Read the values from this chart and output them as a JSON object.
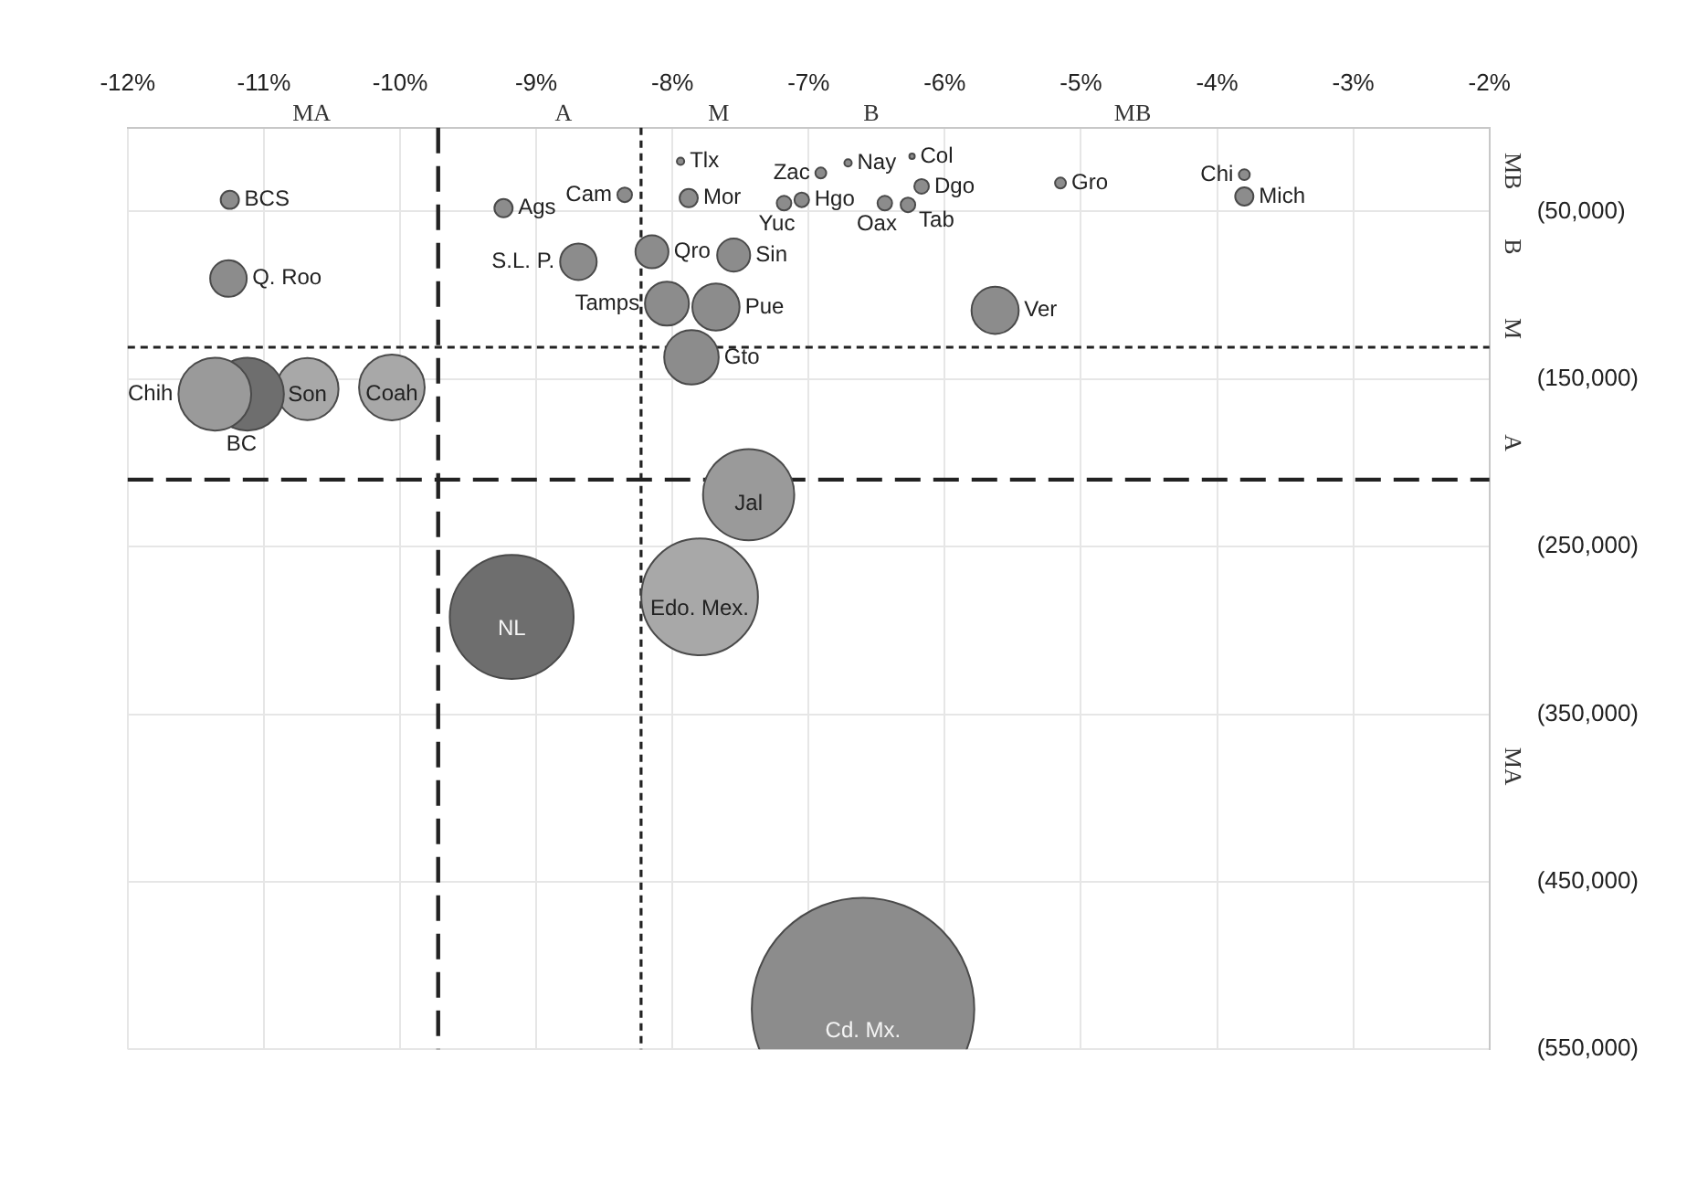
{
  "chart_data": {
    "type": "bubble",
    "xlim": [
      -12,
      -2
    ],
    "xticks": [
      {
        "value": -12,
        "label": "-12%"
      },
      {
        "value": -11,
        "label": "-11%"
      },
      {
        "value": -10,
        "label": "-10%"
      },
      {
        "value": -9,
        "label": "-9%"
      },
      {
        "value": -8,
        "label": "-8%"
      },
      {
        "value": -7,
        "label": "-7%"
      },
      {
        "value": -6,
        "label": "-6%"
      },
      {
        "value": -5,
        "label": "-5%"
      },
      {
        "value": -4,
        "label": "-4%"
      },
      {
        "value": -3,
        "label": "-3%"
      },
      {
        "value": -2,
        "label": "-2%"
      }
    ],
    "ylim": [
      -550000,
      0
    ],
    "yticks": [
      {
        "value": -50000,
        "label": "(50,000)"
      },
      {
        "value": -150000,
        "label": "(150,000)"
      },
      {
        "value": -250000,
        "label": "(250,000)"
      },
      {
        "value": -350000,
        "label": "(350,000)"
      },
      {
        "value": -450000,
        "label": "(450,000)"
      },
      {
        "value": -550000,
        "label": "(550,000)"
      }
    ],
    "grid": true,
    "legend": false,
    "ref_lines": [
      {
        "axis": "x",
        "value": -9.72,
        "line_style": "dashed",
        "color": "#222222"
      },
      {
        "axis": "x",
        "value": -8.23,
        "line_style": "dotted",
        "color": "#222222"
      },
      {
        "axis": "y",
        "value": -131000,
        "line_style": "dotted",
        "color": "#222222"
      },
      {
        "axis": "y",
        "value": -210000,
        "line_style": "dashed",
        "color": "#222222"
      }
    ],
    "annotations": [
      "MA",
      "A",
      "M",
      "B",
      "MB",
      "MB",
      "B",
      "M",
      "A",
      "MA"
    ],
    "series": [
      {
        "name": "BCS",
        "color": "#8c8c8c",
        "x": [
          -11.25
        ],
        "values": [
          -43000
        ],
        "sizes": [
          0.0067
        ]
      },
      {
        "name": "Q. Roo",
        "color": "#8c8c8c",
        "x": [
          -11.26
        ],
        "values": [
          -90000
        ],
        "sizes": [
          0.027
        ]
      },
      {
        "name": "Ags",
        "color": "#8c8c8c",
        "x": [
          -9.24
        ],
        "values": [
          -48000
        ],
        "sizes": [
          0.0067
        ]
      },
      {
        "name": "Cam",
        "color": "#8c8c8c",
        "x": [
          -8.35
        ],
        "values": [
          -40000
        ],
        "sizes": [
          0.0043
        ]
      },
      {
        "name": "S.L. P.",
        "color": "#8c8c8c",
        "x": [
          -8.69
        ],
        "values": [
          -80000
        ],
        "sizes": [
          0.027
        ]
      },
      {
        "name": "Tlx",
        "color": "#8c8c8c",
        "x": [
          -7.94
        ],
        "values": [
          -20000
        ],
        "sizes": [
          0.0011
        ]
      },
      {
        "name": "Mor",
        "color": "#8c8c8c",
        "x": [
          -7.88
        ],
        "values": [
          -42000
        ],
        "sizes": [
          0.0067
        ]
      },
      {
        "name": "Qro",
        "color": "#8c8c8c",
        "x": [
          -8.15
        ],
        "values": [
          -74000
        ],
        "sizes": [
          0.022
        ]
      },
      {
        "name": "Sin",
        "color": "#8c8c8c",
        "x": [
          -7.55
        ],
        "values": [
          -76000
        ],
        "sizes": [
          0.022
        ]
      },
      {
        "name": "Tamps",
        "color": "#8c8c8c",
        "x": [
          -8.04
        ],
        "values": [
          -105000
        ],
        "sizes": [
          0.039
        ]
      },
      {
        "name": "Pue",
        "color": "#8c8c8c",
        "x": [
          -7.68
        ],
        "values": [
          -107000
        ],
        "sizes": [
          0.045
        ]
      },
      {
        "name": "Gto",
        "color": "#8c8c8c",
        "x": [
          -7.86
        ],
        "values": [
          -137000
        ],
        "sizes": [
          0.06
        ]
      },
      {
        "name": "Yuc",
        "color": "#8c8c8c",
        "x": [
          -7.18
        ],
        "values": [
          -45000
        ],
        "sizes": [
          0.0043
        ]
      },
      {
        "name": "Hgo",
        "color": "#8c8c8c",
        "x": [
          -7.05
        ],
        "values": [
          -43000
        ],
        "sizes": [
          0.0043
        ]
      },
      {
        "name": "Zac",
        "color": "#8c8c8c",
        "x": [
          -6.91
        ],
        "values": [
          -27000
        ],
        "sizes": [
          0.0024
        ]
      },
      {
        "name": "Nay",
        "color": "#8c8c8c",
        "x": [
          -6.71
        ],
        "values": [
          -21000
        ],
        "sizes": [
          0.0011
        ]
      },
      {
        "name": "Col",
        "color": "#8c8c8c",
        "x": [
          -6.24
        ],
        "values": [
          -17000
        ],
        "sizes": [
          0.0006
        ]
      },
      {
        "name": "Dgo",
        "color": "#8c8c8c",
        "x": [
          -6.17
        ],
        "values": [
          -35000
        ],
        "sizes": [
          0.0043
        ]
      },
      {
        "name": "Oax",
        "color": "#8c8c8c",
        "x": [
          -6.44
        ],
        "values": [
          -45000
        ],
        "sizes": [
          0.0043
        ]
      },
      {
        "name": "Tab",
        "color": "#8c8c8c",
        "x": [
          -6.27
        ],
        "values": [
          -46000
        ],
        "sizes": [
          0.0043
        ]
      },
      {
        "name": "Gro",
        "color": "#8c8c8c",
        "x": [
          -5.15
        ],
        "values": [
          -33000
        ],
        "sizes": [
          0.0024
        ]
      },
      {
        "name": "Chi",
        "color": "#8c8c8c",
        "x": [
          -3.8
        ],
        "values": [
          -28000
        ],
        "sizes": [
          0.0024
        ]
      },
      {
        "name": "Mich",
        "color": "#8c8c8c",
        "x": [
          -3.8
        ],
        "values": [
          -41000
        ],
        "sizes": [
          0.0067
        ]
      },
      {
        "name": "Ver",
        "color": "#8c8c8c",
        "x": [
          -5.63
        ],
        "values": [
          -109000
        ],
        "sizes": [
          0.045
        ]
      },
      {
        "name": "Chih",
        "color": "#9a9a9a",
        "x": [
          -11.36
        ],
        "values": [
          -159000
        ],
        "sizes": [
          0.107
        ]
      },
      {
        "name": "BC",
        "color": "#6e6e6e",
        "x": [
          -11.12
        ],
        "values": [
          -159000
        ],
        "sizes": [
          0.107
        ]
      },
      {
        "name": "Son",
        "color": "#a8a8a8",
        "x": [
          -10.68
        ],
        "values": [
          -156000
        ],
        "sizes": [
          0.078
        ]
      },
      {
        "name": "Coah",
        "color": "#a8a8a8",
        "x": [
          -10.06
        ],
        "values": [
          -155000
        ],
        "sizes": [
          0.087
        ]
      },
      {
        "name": "Jal",
        "color": "#9a9a9a",
        "x": [
          -7.44
        ],
        "values": [
          -219000
        ],
        "sizes": [
          0.168
        ]
      },
      {
        "name": "Edo. Mex.",
        "color": "#a8a8a8",
        "x": [
          -7.8
        ],
        "values": [
          -280000
        ],
        "sizes": [
          0.275
        ]
      },
      {
        "name": "NL",
        "color": "#6e6e6e",
        "x": [
          -9.18
        ],
        "values": [
          -292000
        ],
        "sizes": [
          0.31
        ]
      },
      {
        "name": "Cd. Mx.",
        "color": "#8c8c8c",
        "x": [
          -6.6
        ],
        "values": [
          -526000
        ],
        "sizes": [
          1
        ]
      }
    ]
  }
}
